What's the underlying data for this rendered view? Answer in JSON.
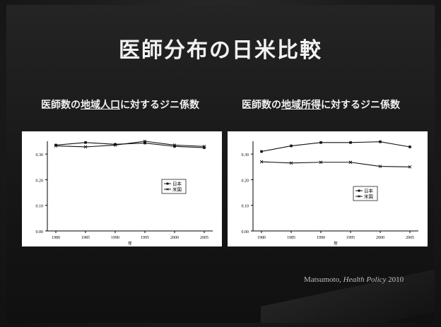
{
  "slide": {
    "title": "医師分布の日米比較",
    "citation_author": "Matsumoto,",
    "citation_journal": "Health Policy",
    "citation_year": "2010"
  },
  "subtitles": [
    {
      "pre": "医師数の",
      "underlined": "地域人口",
      "post": "に対するジニ係数"
    },
    {
      "pre": "医師数の",
      "underlined": "地域所得",
      "post": "に対するジニ係数"
    }
  ],
  "chart_data": [
    {
      "type": "line",
      "title": "医師数の地域人口に対するジニ係数",
      "x": [
        1980,
        1985,
        1990,
        1995,
        2000,
        2005
      ],
      "x_tick_labels": [
        "1980",
        "1985",
        "1990",
        "1995",
        "2000",
        "2005"
      ],
      "xlabel": "年",
      "ylim": [
        0,
        0.35
      ],
      "y_ticks": [
        0.0,
        0.1,
        0.2,
        0.3
      ],
      "y_tick_labels": [
        "0.00",
        "0.10",
        "0.20",
        "0.30"
      ],
      "legend_position": "right-middle",
      "grid": false,
      "series": [
        {
          "name": "日本",
          "values": [
            0.335,
            0.345,
            0.338,
            0.343,
            0.33,
            0.325
          ],
          "color": "#111111",
          "marker": "square"
        },
        {
          "name": "米国",
          "values": [
            0.332,
            0.328,
            0.335,
            0.35,
            0.335,
            0.33
          ],
          "color": "#111111",
          "marker": "x"
        }
      ]
    },
    {
      "type": "line",
      "title": "医師数の地域所得に対するジニ係数",
      "x": [
        1980,
        1985,
        1990,
        1995,
        2000,
        2005
      ],
      "x_tick_labels": [
        "1980",
        "1985",
        "1990",
        "1995",
        "2000",
        "2005"
      ],
      "xlabel": "年",
      "ylim": [
        0,
        0.35
      ],
      "y_ticks": [
        0.0,
        0.1,
        0.2,
        0.3
      ],
      "y_tick_labels": [
        "0.00",
        "0.10",
        "0.20",
        "0.30"
      ],
      "legend_position": "center-right",
      "grid": false,
      "series": [
        {
          "name": "日本",
          "values": [
            0.31,
            0.332,
            0.345,
            0.345,
            0.348,
            0.328
          ],
          "color": "#111111",
          "marker": "square"
        },
        {
          "name": "米国",
          "values": [
            0.27,
            0.265,
            0.268,
            0.268,
            0.252,
            0.25
          ],
          "color": "#111111",
          "marker": "x"
        }
      ]
    }
  ]
}
